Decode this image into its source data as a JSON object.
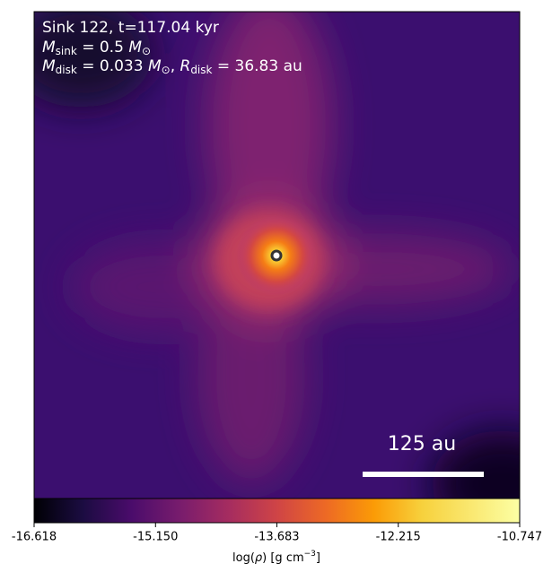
{
  "chart_data": {
    "type": "image",
    "annotations": {
      "line1": "Sink 122, t=117.04 kyr",
      "line2": [
        "M",
        "sink",
        " = 0.5 ",
        "M",
        "⊙"
      ],
      "line3": [
        "M",
        "disk",
        " = 0.033 ",
        "M",
        "⊙",
        ", ",
        "R",
        "disk",
        " = 36.83 au"
      ]
    },
    "scale_bar_label": "125 au",
    "colormap": "inferno",
    "colorbar": {
      "label": [
        "log(",
        "ρ",
        ") [g cm",
        "−3",
        "]"
      ],
      "clim": [
        -16.618,
        -10.747
      ],
      "ticks": [
        -16.618,
        {
          "value": -15.15,
          "label": "-15.150"
        },
        -13.683,
        -12.215,
        -10.747
      ]
    }
  }
}
